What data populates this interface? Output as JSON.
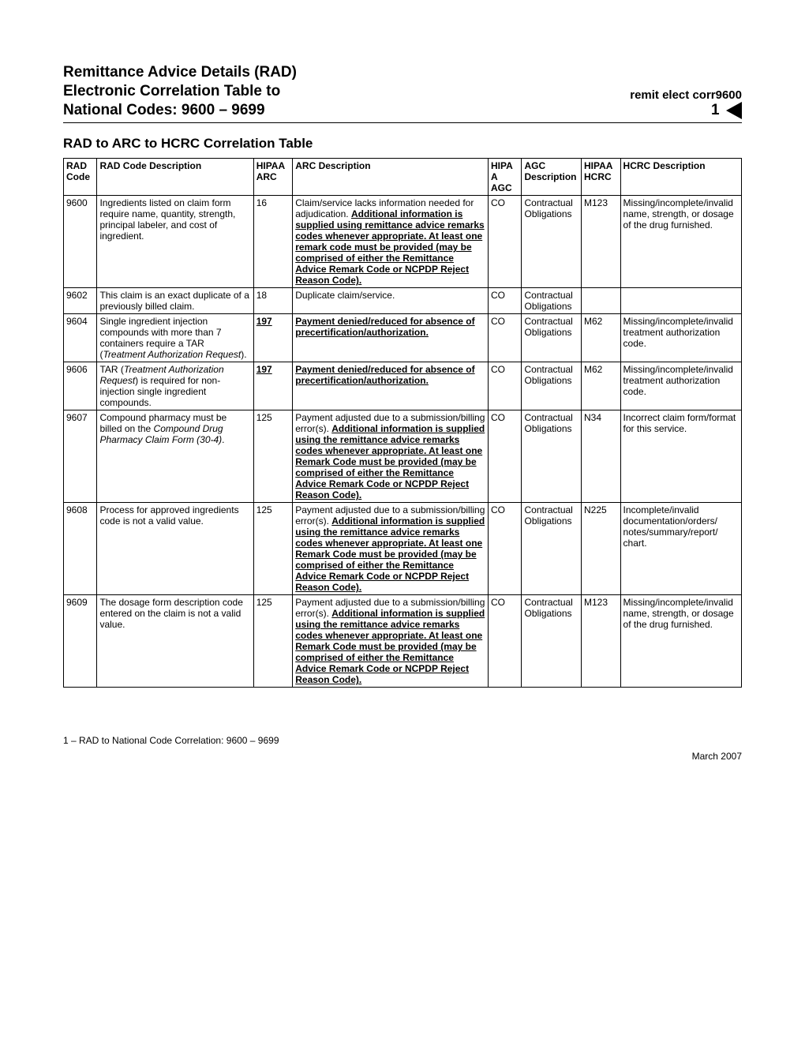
{
  "header": {
    "title_line1": "Remittance Advice Details (RAD)",
    "title_line2": "Electronic Correlation Table to",
    "title_line3": "National Codes:  9600 – 9699",
    "right_sub": "remit elect corr9600",
    "right_page": "1"
  },
  "subtitle": "RAD to ARC to HCRC Correlation Table",
  "columns": {
    "c1": "RAD Code",
    "c2": "RAD Code Description",
    "c3": "HIPAA ARC",
    "c4": "ARC Description",
    "c5": "HIPAA AGC",
    "c6": "AGC Description",
    "c7": "HIPAA HCRC",
    "c8": "HCRC Description"
  },
  "rows": [
    {
      "rad": "9600",
      "raddesc": "Ingredients listed on claim form require name, quantity, strength, principal labeler, and cost of ingredient.",
      "arc": "16",
      "arc_ub": false,
      "arcdesc_plain": "Claim/service lacks information needed for adjudication.  ",
      "arcdesc_ub": "Additional information is supplied using remittance advice remarks codes whenever appropriate.  At least one remark code must be provided (may be comprised of either the Remittance Advice Remark Code or NCPDP Reject Reason Code).",
      "agc": "CO",
      "agcdesc": "Contractual Obligations",
      "hcrc": "M123",
      "hcrcdesc": "Missing/incomplete/invalid name, strength, or dosage of the drug furnished."
    },
    {
      "rad": "9602",
      "raddesc": "This claim is an exact duplicate of a previously billed claim.",
      "arc": "18",
      "arc_ub": false,
      "arcdesc_plain": "Duplicate claim/service.",
      "arcdesc_ub": "",
      "agc": "CO",
      "agcdesc": "Contractual Obligations",
      "hcrc": "",
      "hcrcdesc": ""
    },
    {
      "rad": "9604",
      "raddesc_html": "Single ingredient injection compounds with more than 7 containers require a TAR (<span class=\"i\">Treatment Authorization Request</span>).",
      "arc": "197",
      "arc_ub": true,
      "arcdesc_plain": "",
      "arcdesc_ub": "Payment denied/reduced for absence of precertification/authorization.",
      "agc": "CO",
      "agcdesc": "Contractual Obligations",
      "hcrc": "M62",
      "hcrcdesc": "Missing/incomplete/invalid treatment authorization code."
    },
    {
      "rad": "9606",
      "raddesc_html": "TAR (<span class=\"i\">Treatment Authorization Request</span>) is required for non-injection single ingredient compounds.",
      "arc": "197",
      "arc_ub": true,
      "arcdesc_plain": "",
      "arcdesc_ub": "Payment denied/reduced for absence of precertification/authorization.",
      "agc": "CO",
      "agcdesc": "Contractual Obligations",
      "hcrc": "M62",
      "hcrcdesc": "Missing/incomplete/invalid treatment authorization code."
    },
    {
      "rad": "9607",
      "raddesc_html": "Compound pharmacy must be billed on the <span class=\"i\">Compound Drug Pharmacy Claim Form (30-4)</span>.",
      "arc": "125",
      "arc_ub": false,
      "arcdesc_plain": "Payment adjusted due to a submission/billing error(s). ",
      "arcdesc_ub": "Additional information is supplied using the remittance advice remarks codes whenever appropriate.  At least one Remark Code must be provided (may be comprised of either the Remittance Advice Remark Code or NCPDP Reject Reason Code).",
      "agc": "CO",
      "agcdesc": "Contractual Obligations",
      "hcrc": "N34",
      "hcrcdesc": "Incorrect claim form/format for this service."
    },
    {
      "rad": "9608",
      "raddesc": "Process for approved ingredients code is not a valid value.",
      "arc": "125",
      "arc_ub": false,
      "arcdesc_plain": "Payment adjusted due to a submission/billing error(s). ",
      "arcdesc_ub": "Additional information is supplied using the remittance advice remarks codes whenever appropriate.  At least one Remark Code must be provided (may be comprised of either the Remittance Advice Remark Code or NCPDP Reject Reason Code).",
      "agc": "CO",
      "agcdesc": "Contractual Obligations",
      "hcrc": "N225",
      "hcrcdesc": "Incomplete/invalid documentation/orders/\nnotes/summary/report/\nchart."
    },
    {
      "rad": "9609",
      "raddesc": "The dosage form description code entered on the claim is not a valid value.",
      "arc": "125",
      "arc_ub": false,
      "arcdesc_plain": "Payment adjusted due to a submission/billing error(s). ",
      "arcdesc_ub": "Additional information is supplied using the remittance advice remarks codes whenever appropriate.  At least one Remark Code must be provided (may be comprised of either the Remittance Advice Remark Code or NCPDP Reject Reason Code).",
      "agc": "CO",
      "agcdesc": "Contractual Obligations",
      "hcrc": "M123",
      "hcrcdesc": "Missing/incomplete/invalid name, strength, or dosage of the drug furnished."
    }
  ],
  "footer": {
    "left": "1 – RAD to National Code Correlation:  9600 – 9699",
    "right": "March 2007"
  }
}
